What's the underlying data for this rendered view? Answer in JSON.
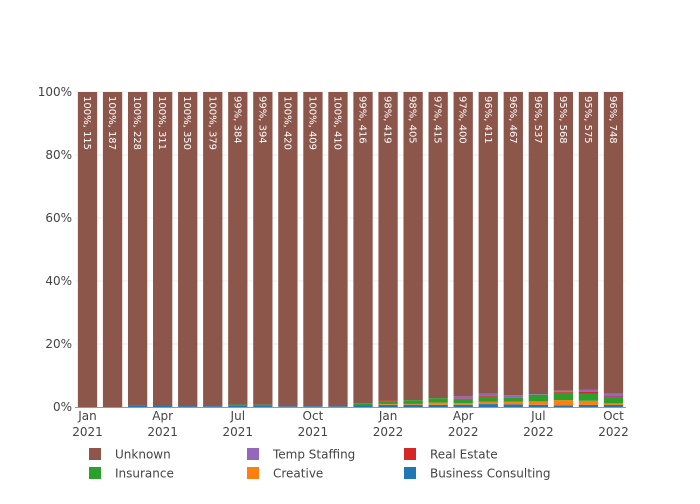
{
  "chart_data": {
    "type": "bar",
    "stacked": true,
    "normalized": "percent",
    "title": "",
    "xlabel": "",
    "ylabel": "",
    "ylim": [
      0,
      100
    ],
    "grid": true,
    "legend_placement": "bottom",
    "y_ticks": [
      "0%",
      "20%",
      "40%",
      "60%",
      "80%",
      "100%"
    ],
    "x_ticks": [
      {
        "index": 0,
        "label": [
          "Jan",
          "2021"
        ]
      },
      {
        "index": 3,
        "label": [
          "Apr",
          "2021"
        ]
      },
      {
        "index": 6,
        "label": [
          "Jul",
          "2021"
        ]
      },
      {
        "index": 9,
        "label": [
          "Oct",
          "2021"
        ]
      },
      {
        "index": 12,
        "label": [
          "Jan",
          "2022"
        ]
      },
      {
        "index": 15,
        "label": [
          "Apr",
          "2022"
        ]
      },
      {
        "index": 18,
        "label": [
          "Jul",
          "2022"
        ]
      },
      {
        "index": 21,
        "label": [
          "Oct",
          "2022"
        ]
      }
    ],
    "categories": [
      "2021-01",
      "2021-02",
      "2021-03",
      "2021-04",
      "2021-05",
      "2021-06",
      "2021-07",
      "2021-08",
      "2021-09",
      "2021-10",
      "2021-11",
      "2021-12",
      "2022-01",
      "2022-02",
      "2022-03",
      "2022-04",
      "2022-05",
      "2022-06",
      "2022-07",
      "2022-08",
      "2022-09",
      "2022-10"
    ],
    "series": [
      {
        "name": "Business Consulting",
        "color": "#1f77b4",
        "values": [
          0,
          0,
          1,
          1,
          1,
          1,
          2,
          2,
          1,
          1,
          1,
          2,
          3,
          3,
          3,
          3,
          4,
          4,
          4,
          3,
          4,
          5
        ]
      },
      {
        "name": "Creative",
        "color": "#ff7f0e",
        "values": [
          0,
          0,
          0,
          0,
          0,
          0,
          0,
          0,
          0,
          0,
          0,
          0,
          1,
          1,
          3,
          2,
          3,
          4,
          6,
          10,
          8,
          4
        ]
      },
      {
        "name": "Insurance",
        "color": "#2ca02c",
        "values": [
          0,
          0,
          0,
          0,
          0,
          0,
          1,
          1,
          0,
          0,
          0,
          3,
          4,
          5,
          6,
          5,
          7,
          7,
          12,
          14,
          14,
          14
        ]
      },
      {
        "name": "Real Estate",
        "color": "#d62728",
        "values": [
          0,
          0,
          0,
          0,
          0,
          0,
          0,
          0,
          0,
          0,
          0,
          0,
          1,
          0,
          0,
          1,
          1,
          0,
          0,
          2,
          3,
          3
        ]
      },
      {
        "name": "Temp Staffing",
        "color": "#9467bd",
        "values": [
          0,
          0,
          0,
          0,
          0,
          0,
          0,
          0,
          0,
          0,
          0,
          0,
          0,
          0,
          0,
          3,
          3,
          3,
          1,
          2,
          4,
          7
        ]
      },
      {
        "name": "Unknown",
        "color": "#8c564b",
        "values": [
          115,
          187,
          228,
          311,
          350,
          379,
          384,
          394,
          420,
          409,
          410,
          416,
          419,
          405,
          415,
          400,
          411,
          467,
          537,
          568,
          575,
          748
        ]
      }
    ],
    "unknown_labels": [
      "100%, 115",
      "100%, 187",
      "100%, 228",
      "100%, 311",
      "100%, 350",
      "100%, 379",
      "99%, 384",
      "99%, 394",
      "100%, 420",
      "100%, 409",
      "100%, 410",
      "99%, 416",
      "98%, 419",
      "98%, 405",
      "97%, 415",
      "97%, 400",
      "96%, 411",
      "96%, 467",
      "96%, 537",
      "95%, 568",
      "95%, 575",
      "96%, 748"
    ],
    "legend": [
      {
        "name": "Unknown",
        "color": "#8c564b"
      },
      {
        "name": "Temp Staffing",
        "color": "#9467bd"
      },
      {
        "name": "Real Estate",
        "color": "#d62728"
      },
      {
        "name": "Insurance",
        "color": "#2ca02c"
      },
      {
        "name": "Creative",
        "color": "#ff7f0e"
      },
      {
        "name": "Business Consulting",
        "color": "#1f77b4"
      }
    ]
  }
}
